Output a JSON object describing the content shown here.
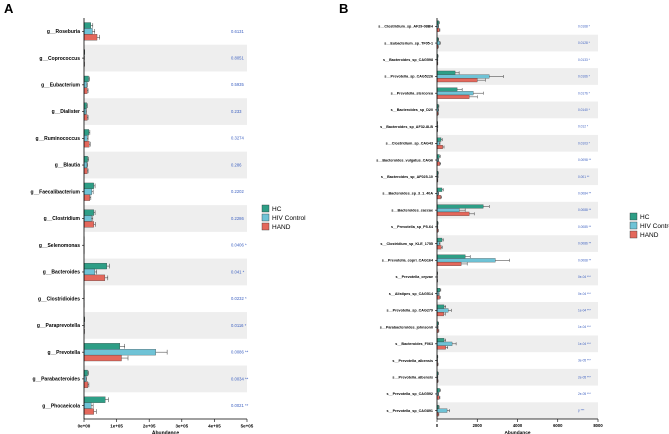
{
  "colors": {
    "HC": "#2e9e86",
    "HIV Control": "#6fc3d6",
    "HAND": "#e4685c",
    "band": "#eeeeee",
    "pvalue": "#3b5fc0"
  },
  "chart_data": [
    {
      "panel": "A",
      "type": "bar",
      "orientation": "horizontal",
      "xlabel": "Abundance",
      "xlim": [
        0,
        500000
      ],
      "xticks": [
        0,
        100000,
        200000,
        300000,
        400000,
        500000
      ],
      "xtick_labels": [
        "0e+00",
        "1e+05",
        "2e+05",
        "3e+05",
        "4e+05",
        "5e+05"
      ],
      "legend": {
        "position": "right",
        "entries": [
          "HC",
          "HIV Control",
          "HAND"
        ]
      },
      "categories": [
        "g__Roseburia",
        "g__Coprococcus",
        "g__Eubacterium",
        "g__Dialister",
        "g__Ruminococcus",
        "g__Blautia",
        "g__Faecalibacterium",
        "g__Clostridium",
        "g__Selenomonas",
        "g__Bacteroides",
        "g__Clostridioides",
        "g__Paraprevotella",
        "g__Prevotella",
        "g__Parabacteroides",
        "g__Phocaeicola"
      ],
      "pvalues": [
        "0.6131",
        "0.8051",
        "0.5935",
        "0.233",
        "0.3274",
        "0.286",
        "0.2202",
        "0.2286",
        "0.0406 *",
        "0.041 *",
        "0.0232 *",
        "0.0116 *",
        "0.0086 **",
        "0.0034 **",
        "0.0021 **"
      ],
      "series": [
        {
          "name": "HC",
          "values": [
            21000,
            1500,
            14000,
            8000,
            15000,
            11000,
            30000,
            30000,
            500,
            70000,
            500,
            1500,
            110000,
            11000,
            65000
          ],
          "errors": [
            6000,
            500,
            3000,
            2000,
            3000,
            3000,
            4000,
            4000,
            200,
            8000,
            200,
            500,
            15000,
            3000,
            10000
          ]
        },
        {
          "name": "HIV Control",
          "values": [
            26000,
            1000,
            8000,
            6000,
            10000,
            9000,
            24000,
            23000,
            300,
            33000,
            300,
            900,
            220000,
            6000,
            22000
          ],
          "errors": [
            7000,
            400,
            2000,
            1500,
            2500,
            2500,
            4000,
            4000,
            150,
            6000,
            150,
            400,
            35000,
            2000,
            6000
          ]
        },
        {
          "name": "HAND",
          "values": [
            40000,
            1200,
            10000,
            10000,
            16000,
            10000,
            18000,
            30000,
            400,
            64000,
            400,
            1100,
            115000,
            12000,
            30000
          ],
          "errors": [
            8000,
            400,
            2500,
            2500,
            3000,
            2500,
            3000,
            5000,
            200,
            9000,
            200,
            400,
            20000,
            3000,
            8000
          ]
        }
      ]
    },
    {
      "panel": "B",
      "type": "bar",
      "orientation": "horizontal",
      "xlabel": "Abundance",
      "xlim": [
        0,
        8000
      ],
      "xticks": [
        0,
        2000,
        4000,
        6000,
        8000
      ],
      "xtick_labels": [
        "0",
        "2000",
        "4000",
        "6000",
        "8000"
      ],
      "legend": {
        "position": "right",
        "entries": [
          "HC",
          "HIV Control",
          "HAND"
        ]
      },
      "categories": [
        "s__Clostridium_sp_AF29-08BH",
        "s__Eubacterium_sp_TF05-1",
        "s__Bacteroides_sp_CAG598",
        "s__Prevotella_sp_CAG5226",
        "s__Prevotella_stercorea",
        "s__Bacteroides_sp_D20",
        "s__Bacteroides_sp_AF32-8LB",
        "s__Clostridium_sp_CAG43",
        "s__Bacteroides_vulgatus_CAG6",
        "s__Bacteroides_sp_AF025-10",
        "s__Bacteroides_sp_3_1_40A",
        "s__Bacteroides_caccae",
        "s__Prevotella_sp_P5-64",
        "s__Clostridium_sp_KLE_1755",
        "s__Prevotella_copri_CAG164",
        "s__Prevotella_oryzae",
        "s__Alistipes_sp_CAG514",
        "s__Prevotella_sp_CAG279",
        "s__Parabacteroides_johnsonii",
        "s__Bacteroides_F063",
        "s__Prevotella_albensis",
        "s__Prevotella_albensis",
        "s__Prevotella_sp_CAG592",
        "s__Prevotella_sp_CAG891"
      ],
      "pvalues": [
        "0.0168 *",
        "0.0128 *",
        "0.0133 *",
        "0.0166 *",
        "0.0176 *",
        "0.0140 *",
        "0.012 *",
        "0.0103 *",
        "0.0098 **",
        "0.001 **",
        "0.0084 **",
        "0.0088 **",
        "0.0085 **",
        "0.0086 **",
        "0.0068 **",
        "0e-04 ***",
        "0e-04 ***",
        "1e-04 ***",
        "1e-04 ***",
        "1e-04 ***",
        "3e-05 ***",
        "2e-05 ***",
        "2e-05 ***",
        "p ***"
      ],
      "series": [
        {
          "name": "HC",
          "values": [
            90,
            60,
            40,
            900,
            1000,
            70,
            20,
            200,
            120,
            50,
            250,
            2300,
            40,
            250,
            1400,
            20,
            150,
            350,
            60,
            350,
            30,
            50,
            130,
            80
          ],
          "errors": [
            30,
            20,
            15,
            200,
            250,
            25,
            10,
            60,
            40,
            20,
            60,
            300,
            15,
            60,
            250,
            10,
            40,
            80,
            20,
            80,
            12,
            20,
            40,
            25
          ]
        },
        {
          "name": "HIV Control",
          "values": [
            60,
            130,
            30,
            2600,
            1800,
            60,
            30,
            110,
            60,
            40,
            60,
            1100,
            30,
            110,
            2900,
            15,
            80,
            560,
            40,
            750,
            20,
            30,
            60,
            500
          ],
          "errors": [
            20,
            40,
            12,
            700,
            500,
            20,
            12,
            40,
            20,
            15,
            20,
            300,
            12,
            40,
            700,
            8,
            25,
            150,
            15,
            200,
            8,
            12,
            20,
            120
          ]
        },
        {
          "name": "HAND",
          "values": [
            110,
            50,
            30,
            2000,
            1600,
            50,
            20,
            280,
            140,
            30,
            180,
            1600,
            50,
            210,
            1200,
            20,
            130,
            330,
            70,
            430,
            40,
            40,
            110,
            70
          ],
          "errors": [
            35,
            20,
            12,
            400,
            400,
            20,
            10,
            70,
            45,
            12,
            50,
            250,
            20,
            50,
            300,
            8,
            35,
            80,
            25,
            100,
            15,
            15,
            35,
            25
          ]
        }
      ]
    }
  ]
}
